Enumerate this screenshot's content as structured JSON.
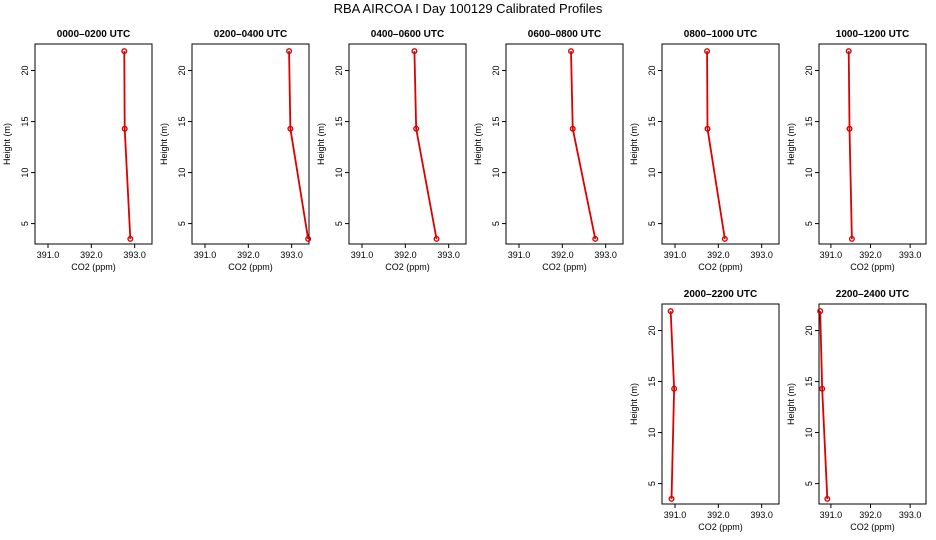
{
  "chart_data": {
    "type": "line",
    "title": "RBA AIRCOA I  Day 100129  Calibrated Profiles",
    "xlabel": "CO2 (ppm)",
    "ylabel": "Height (m)",
    "xlim": [
      390.7,
      393.4
    ],
    "ylim": [
      3,
      22.6
    ],
    "x_ticks": [
      391.0,
      392.0,
      393.0
    ],
    "x_tick_labels": [
      "391.0",
      "392.0",
      "393.0"
    ],
    "y_ticks": [
      5,
      10,
      15,
      20
    ],
    "y_tick_labels": [
      "5",
      "10",
      "15",
      "20"
    ],
    "heights": [
      21.9,
      14.3,
      3.5
    ],
    "panels": [
      {
        "title": "0000–0200 UTC",
        "co2": [
          392.76,
          392.77,
          392.9
        ]
      },
      {
        "title": "0200–0400 UTC",
        "co2": [
          392.94,
          392.97,
          393.38
        ]
      },
      {
        "title": "0400–0600 UTC",
        "co2": [
          392.21,
          392.25,
          392.72
        ]
      },
      {
        "title": "0600–0800 UTC",
        "co2": [
          392.2,
          392.24,
          392.76
        ]
      },
      {
        "title": "0800–1000 UTC",
        "co2": [
          391.74,
          391.75,
          392.15
        ]
      },
      {
        "title": "1000–1200 UTC",
        "co2": [
          391.45,
          391.47,
          391.53
        ]
      },
      {
        "title": "2000–2200 UTC",
        "co2": [
          390.9,
          390.98,
          390.92
        ]
      },
      {
        "title": "2200–2400 UTC",
        "co2": [
          390.73,
          390.78,
          390.91
        ]
      }
    ]
  }
}
